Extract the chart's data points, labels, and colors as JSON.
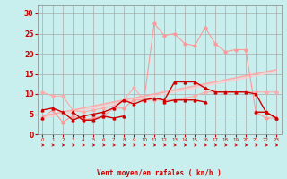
{
  "bg_color": "#c8eeed",
  "grid_color": "#aaaaaa",
  "xlabel": "Vent moyen/en rafales ( kn/h )",
  "xlabel_color": "#cc0000",
  "tick_color": "#cc0000",
  "x_values": [
    0,
    1,
    2,
    3,
    4,
    5,
    6,
    7,
    8,
    9,
    10,
    11,
    12,
    13,
    14,
    15,
    16,
    17,
    18,
    19,
    20,
    21,
    22,
    23
  ],
  "ylim": [
    0,
    32
  ],
  "yticks": [
    0,
    5,
    10,
    15,
    20,
    25,
    30
  ],
  "line1_y": [
    10.5,
    9.5,
    9.5,
    6.0,
    5.5,
    6.0,
    6.5,
    7.0,
    8.5,
    11.5,
    8.5,
    8.5,
    8.5,
    8.5,
    9.0,
    9.5,
    10.5,
    10.5,
    10.5,
    10.5,
    10.5,
    10.5,
    10.5,
    10.5
  ],
  "line1_color": "#ffaaaa",
  "line2_y": [
    4.0,
    6.0,
    3.0,
    4.5,
    3.5,
    4.0,
    4.5,
    6.5,
    6.5,
    8.5,
    8.5,
    27.5,
    24.5,
    25.0,
    22.5,
    22.0,
    26.5,
    22.5,
    20.5,
    21.0,
    21.0,
    5.5,
    4.0,
    4.0
  ],
  "line2_color": "#ff9999",
  "line3_y": [
    6.0,
    6.5,
    5.5,
    3.5,
    4.5,
    5.0,
    5.5,
    6.5,
    8.5,
    7.5,
    8.5,
    9.0,
    8.5,
    13.0,
    13.0,
    13.0,
    11.5,
    10.5,
    10.5,
    10.5,
    10.5,
    10.0,
    5.5,
    4.0
  ],
  "line3_color": "#cc0000",
  "line4_y": [
    4.0,
    null,
    null,
    5.5,
    3.5,
    3.5,
    4.5,
    4.0,
    4.5,
    null,
    null,
    null,
    8.0,
    8.5,
    8.5,
    8.5,
    8.0,
    null,
    null,
    null,
    null,
    5.5,
    5.5,
    4.0
  ],
  "line4_color": "#cc0000",
  "line5_y": [
    4.5,
    5.0,
    5.5,
    6.0,
    6.5,
    7.0,
    7.5,
    8.0,
    8.5,
    9.0,
    9.5,
    10.0,
    10.5,
    11.0,
    11.5,
    12.0,
    12.5,
    13.0,
    13.5,
    14.0,
    14.5,
    15.0,
    15.5,
    16.0
  ],
  "line5_color": "#ffaaaa",
  "line6_y": [
    4.0,
    4.5,
    5.0,
    5.5,
    6.0,
    6.5,
    7.0,
    7.5,
    8.0,
    8.5,
    9.0,
    9.5,
    10.0,
    10.5,
    11.0,
    11.5,
    12.0,
    12.5,
    13.0,
    13.5,
    14.0,
    14.5,
    15.0,
    15.5
  ],
  "line6_color": "#ffcccc",
  "arrow_color": "#cc0000"
}
